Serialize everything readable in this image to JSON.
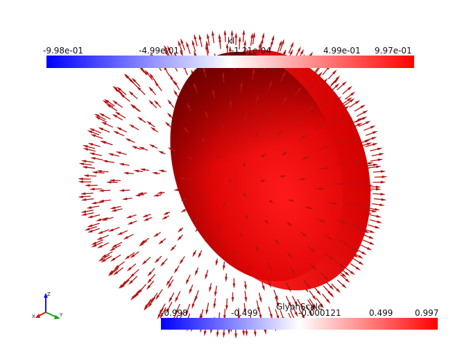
{
  "top_colorbar": {
    "title": "kl",
    "ticks": [
      "-9.98e-01",
      "-4.99e-01",
      "-1.21e-04",
      "4.99e-01",
      "9.97e-01"
    ],
    "range": [
      -0.998,
      0.997
    ]
  },
  "bottom_colorbar": {
    "title": "GlyphScale",
    "ticks": [
      "-0.998",
      "-0.499",
      "-0.000121",
      "0.499",
      "0.997"
    ],
    "range": [
      -0.998,
      0.997
    ]
  },
  "axes_triad": {
    "x": "X",
    "y": "Y",
    "z": "Z"
  },
  "colors": {
    "background": "#ffffff",
    "low": "#0000ff",
    "mid": "#ffffff",
    "high": "#ff0000",
    "glyph": "#b31313"
  }
}
